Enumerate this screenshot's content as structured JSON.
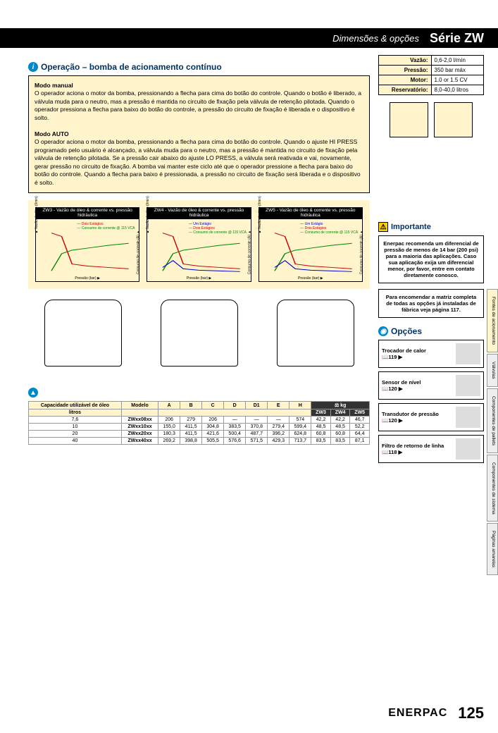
{
  "header": {
    "sub": "Dimensões & opções",
    "title": "Série ZW"
  },
  "operation": {
    "title": "Operação – bomba de acionamento contínuo",
    "manual_title": "Modo manual",
    "manual_text": "O operador aciona o motor da bomba, pressionando a flecha para cima do botão do controle. Quando o botão é liberado, a válvula muda para o neutro, mas a pressão é mantida no circuito de fixação pela válvula de retenção pilotada. Quando o operador pressiona a flecha para baixo do botão do controle, a pressão do circuito de fixação é liberada e o dispositivo é solto.",
    "auto_title": "Modo AUTO",
    "auto_text": "O operador aciona o motor da bomba, pressionando a flecha para cima do botão do controle. Quando o ajuste HI PRESS programado pelo usuário é alcançado, a válvula muda para o neutro, mas a pressão é mantida no circuito de fixação pela válvula de retenção pilotada. Se a pressão cair abaixo do ajuste LO PRESS, a válvula será reativada e vai, novamente, gerar pressão no circuito de fixação. A bomba vai manter este ciclo até que o operador pressione a flecha para baixo do botão do controle. Quando a flecha para baixo é pressionada, a pressão no circuito de fixação será liberada e o dispositivo é solto."
  },
  "specs": {
    "rows": [
      {
        "label": "Vazão:",
        "value": "0,6-2,0 l/mín"
      },
      {
        "label": "Pressão:",
        "value": "350 bar máx"
      },
      {
        "label": "Motor:",
        "value": "1.0 or 1.5 CV"
      },
      {
        "label": "Reservatório:",
        "value": "8,0-40,0 litros"
      }
    ]
  },
  "charts": [
    {
      "title": "ZW3 - Vazão de óleo & corrente vs. pressão hidráulica",
      "y1_label": "Vazão de óleo (l/min)",
      "y2_label": "Consumo de corrente (A)",
      "x_label": "Pressão (bar)",
      "y1_ticks": [
        "0",
        "0,8",
        "1,6",
        "2,5",
        "3,3",
        "4,1"
      ],
      "y2_ticks": [
        "0",
        "2",
        "4",
        "6",
        "8",
        "10",
        "12"
      ],
      "x_ticks": [
        "7",
        "86",
        "172",
        "259",
        "0",
        "345"
      ],
      "legend": [
        {
          "c": "r",
          "t": "Dois Estágios"
        },
        {
          "c": "g",
          "t": "Consumo de corrente @ 115 VCA"
        }
      ]
    },
    {
      "title": "ZW4 - Vazão de óleo & corrente vs. pressão hidráulica",
      "y1_label": "Vazão de óleo (l/min)",
      "y2_label": "Consumo de corrente (A)",
      "x_label": "Pressão (bar)",
      "y1_ticks": [
        "0",
        "10",
        "20",
        "30",
        "40",
        "50",
        "60",
        "70",
        "80",
        "90",
        "100"
      ],
      "y2_ticks": [
        "0",
        "5",
        "10",
        "15",
        "20",
        "25"
      ],
      "x_ticks": [
        "0",
        "50",
        "100",
        "150",
        "200",
        "250",
        "300",
        "350"
      ],
      "legend": [
        {
          "c": "b",
          "t": "Um Estágio"
        },
        {
          "c": "r",
          "t": "Dois Estágios"
        },
        {
          "c": "g",
          "t": "Consumo de corrente @ 115 VCA"
        }
      ]
    },
    {
      "title": "ZW5 - Vazão de óleo & corrente vs. pressão hidráulica",
      "y1_label": "Vazão de óleo (l/min)",
      "y2_label": "Consumo de corrente (A)",
      "x_label": "Pressão (bar)",
      "y1_ticks": [
        "0",
        "10",
        "20",
        "30",
        "40",
        "50",
        "60",
        "70",
        "80",
        "90",
        "100"
      ],
      "y2_ticks": [
        "-20",
        "-15",
        "-10",
        "-5",
        "0",
        "5",
        "10",
        "15",
        "20",
        "25"
      ],
      "x_ticks": [
        "0",
        "50",
        "100",
        "150",
        "200",
        "250",
        "300",
        "350"
      ],
      "legend": [
        {
          "c": "b",
          "t": "Um Estágio"
        },
        {
          "c": "r",
          "t": "Dois Estágios"
        },
        {
          "c": "g",
          "t": "Consumo de corrente @ 115 VCA"
        }
      ]
    }
  ],
  "importante": {
    "title": "Importante",
    "text": "Enerpac recomenda um diferencial de pressão de menos de 14 bar (200 psi) para a maioria das aplicações. Caso sua aplicação exija um diferencial menor, por favor, entre em contato diretamente conosco."
  },
  "matriz": {
    "text": "Para encomendar a matriz completa de todas as opções já instaladas de fábrica veja página 117."
  },
  "opcoes": {
    "title": "Opções",
    "items": [
      {
        "name": "Trocador de calor",
        "page": "119"
      },
      {
        "name": "Sensor de nível",
        "page": "120"
      },
      {
        "name": "Transdutor de pressão",
        "page": "120"
      },
      {
        "name": "Filtro de retorno de linha",
        "page": "118"
      }
    ]
  },
  "table": {
    "headers_top": [
      "Capacidade utilizável de óleo",
      "Modelo",
      "A",
      "B",
      "C",
      "D",
      "D1",
      "E",
      "H",
      "kg"
    ],
    "headers_unit": "litros",
    "headers_kg": [
      "ZW3",
      "ZW4",
      "ZW5"
    ],
    "rows": [
      {
        "cap": "7,6",
        "model": "ZWxx08xx",
        "d": [
          "206",
          "279",
          "206",
          "—",
          "—",
          "—",
          "574"
        ],
        "kg": [
          "42,2",
          "42,2",
          "46,7"
        ]
      },
      {
        "cap": "10",
        "model": "ZWxx10xx",
        "d": [
          "155,0",
          "411,5",
          "304,8",
          "383,5",
          "370,8",
          "279,4",
          "599,4"
        ],
        "kg": [
          "48,5",
          "48,5",
          "52,2"
        ]
      },
      {
        "cap": "20",
        "model": "ZWxx20xx",
        "d": [
          "180,3",
          "411,5",
          "421,6",
          "500,4",
          "487,7",
          "396,2",
          "624,8"
        ],
        "kg": [
          "60,8",
          "60,8",
          "64,4"
        ]
      },
      {
        "cap": "40",
        "model": "ZWxx40xx",
        "d": [
          "269,2",
          "398,8",
          "505,5",
          "576,6",
          "571,5",
          "429,3",
          "713,7"
        ],
        "kg": [
          "83,5",
          "83,5",
          "87,1"
        ]
      }
    ]
  },
  "tabs": [
    "Fontes de acionamento",
    "Válvulas",
    "Componentes de pallets",
    "Componentes de sistema",
    "Páginas amarelas"
  ],
  "footer": {
    "brand": "ENERPAC",
    "page": "125"
  }
}
